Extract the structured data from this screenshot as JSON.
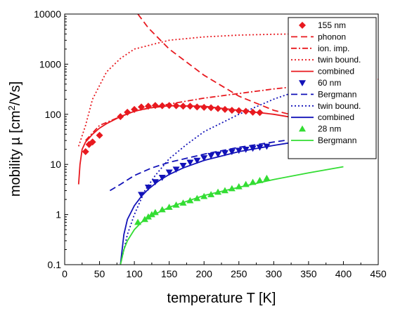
{
  "chart_data": {
    "type": "scatter",
    "xlabel": "temperature T [K]",
    "ylabel_prefix": "mobility µ [cm",
    "ylabel_sup": "2",
    "ylabel_suffix": "/Vs]",
    "xlim": [
      0,
      450
    ],
    "ylim": [
      0.1,
      10000
    ],
    "y_scale": "log",
    "x_ticks": [
      "0",
      "50",
      "100",
      "150",
      "200",
      "250",
      "300",
      "350",
      "400",
      "450"
    ],
    "y_ticks": [
      "0.1",
      "1",
      "10",
      "100",
      "1000",
      "10000"
    ],
    "grid": false,
    "legend_position": "top-right",
    "colors": {
      "red": "#e8191f",
      "blue": "#1212b8",
      "green": "#33dd33"
    },
    "series": [
      {
        "name": "155 nm",
        "kind": "points",
        "marker": "diamond",
        "color": "red",
        "x": [
          30,
          35,
          40,
          50,
          80,
          90,
          100,
          110,
          120,
          130,
          140,
          150,
          160,
          170,
          180,
          190,
          200,
          210,
          220,
          230,
          240,
          250,
          260,
          270,
          280
        ],
        "y": [
          18,
          25,
          28,
          38,
          90,
          110,
          125,
          140,
          145,
          150,
          148,
          150,
          148,
          145,
          145,
          140,
          138,
          135,
          130,
          125,
          120,
          118,
          115,
          110,
          108
        ]
      },
      {
        "name": "phonon",
        "kind": "line",
        "style": "dash",
        "color": "red",
        "x": [
          105,
          120,
          150,
          200,
          250,
          300,
          350,
          450
        ],
        "y": [
          10000,
          5300,
          2000,
          600,
          230,
          120,
          80,
          50
        ]
      },
      {
        "name": "ion. imp.",
        "kind": "line",
        "style": "dashdot",
        "color": "red",
        "x": [
          30,
          50,
          80,
          100,
          150,
          200,
          250,
          300,
          350,
          450
        ],
        "y": [
          30,
          60,
          90,
          115,
          160,
          210,
          260,
          320,
          380,
          500
        ]
      },
      {
        "name": "twin bound.",
        "kind": "line",
        "style": "dot",
        "color": "red",
        "x": [
          20,
          30,
          40,
          60,
          80,
          100,
          150,
          200,
          250,
          300,
          330
        ],
        "y": [
          23,
          60,
          200,
          700,
          1300,
          2000,
          3000,
          3500,
          3800,
          3950,
          4000
        ]
      },
      {
        "name": "combined",
        "kind": "line",
        "style": "solid",
        "color": "red",
        "x": [
          20,
          22,
          25,
          30,
          40,
          50,
          60,
          80,
          100,
          120,
          150,
          200,
          250,
          300,
          330
        ],
        "y": [
          4,
          10,
          20,
          28,
          40,
          53,
          65,
          90,
          115,
          133,
          148,
          145,
          120,
          100,
          85
        ]
      },
      {
        "name": "60 nm",
        "kind": "points",
        "marker": "triangle-down",
        "color": "blue",
        "x": [
          110,
          120,
          130,
          140,
          150,
          160,
          170,
          180,
          190,
          200,
          210,
          220,
          230,
          240,
          250,
          260,
          270,
          280,
          290
        ],
        "y": [
          2.5,
          3.5,
          4.5,
          5.5,
          7,
          8,
          9.5,
          11,
          12,
          13.5,
          15,
          16,
          17,
          18,
          19,
          20,
          21,
          22,
          23
        ]
      },
      {
        "name": "Bergmann",
        "kind": "line",
        "style": "dash",
        "color": "blue",
        "x": [
          65,
          80,
          100,
          125,
          150,
          200,
          250,
          300,
          330
        ],
        "y": [
          3,
          4,
          6,
          8.5,
          11,
          16,
          22,
          28,
          32
        ]
      },
      {
        "name": "twin bound.",
        "kind": "line",
        "style": "dot",
        "color": "blue",
        "x": [
          80,
          90,
          100,
          115,
          130,
          150,
          175,
          200,
          250,
          300,
          330
        ],
        "y": [
          0.1,
          0.4,
          1,
          3,
          6,
          13,
          25,
          45,
          100,
          200,
          280
        ]
      },
      {
        "name": "combined",
        "kind": "line",
        "style": "solid",
        "color": "blue",
        "x": [
          80,
          85,
          90,
          100,
          110,
          120,
          135,
          150,
          170,
          200,
          250,
          300,
          330
        ],
        "y": [
          0.1,
          0.4,
          0.8,
          1.5,
          2.3,
          3.2,
          4.7,
          6.3,
          8.5,
          12,
          18,
          24,
          28
        ]
      },
      {
        "name": "28 nm",
        "kind": "points",
        "marker": "triangle-up",
        "color": "green",
        "x": [
          105,
          115,
          120,
          125,
          130,
          140,
          150,
          160,
          170,
          180,
          190,
          200,
          210,
          220,
          230,
          240,
          250,
          260,
          270,
          280,
          290
        ],
        "y": [
          0.7,
          0.8,
          0.9,
          1,
          1.1,
          1.25,
          1.4,
          1.55,
          1.7,
          1.9,
          2.1,
          2.3,
          2.5,
          2.8,
          3.0,
          3.3,
          3.6,
          4.0,
          4.4,
          4.8,
          5.3
        ]
      },
      {
        "name": "Bergmann",
        "kind": "line",
        "style": "solid",
        "color": "green",
        "x": [
          80,
          85,
          90,
          100,
          110,
          125,
          150,
          200,
          250,
          300,
          350,
          400
        ],
        "y": [
          0.1,
          0.2,
          0.3,
          0.5,
          0.7,
          0.95,
          1.4,
          2.4,
          3.5,
          5,
          6.8,
          9
        ]
      }
    ]
  }
}
